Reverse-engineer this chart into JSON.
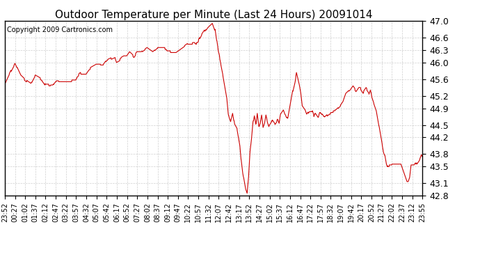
{
  "title": "Outdoor Temperature per Minute (Last 24 Hours) 20091014",
  "copyright_text": "Copyright 2009 Cartronics.com",
  "line_color": "#cc0000",
  "bg_color": "#ffffff",
  "plot_bg_color": "#ffffff",
  "grid_color": "#bbbbbb",
  "ylim": [
    42.8,
    47.0
  ],
  "yticks": [
    42.8,
    43.1,
    43.5,
    43.8,
    44.2,
    44.5,
    44.9,
    45.2,
    45.6,
    46.0,
    46.3,
    46.6,
    47.0
  ],
  "xtick_labels": [
    "23:52",
    "00:27",
    "01:02",
    "01:37",
    "02:12",
    "02:47",
    "03:22",
    "03:57",
    "04:32",
    "05:07",
    "05:42",
    "06:17",
    "06:52",
    "07:27",
    "08:02",
    "08:37",
    "09:12",
    "09:47",
    "10:22",
    "10:57",
    "11:32",
    "12:07",
    "12:42",
    "13:17",
    "13:52",
    "14:27",
    "15:02",
    "15:37",
    "16:12",
    "16:47",
    "17:22",
    "17:57",
    "18:32",
    "19:07",
    "19:42",
    "20:17",
    "20:52",
    "21:27",
    "22:02",
    "22:37",
    "23:12",
    "23:55"
  ],
  "title_fontsize": 11,
  "tick_fontsize": 7,
  "ytick_fontsize": 9,
  "copyright_fontsize": 7,
  "line_width": 0.8
}
